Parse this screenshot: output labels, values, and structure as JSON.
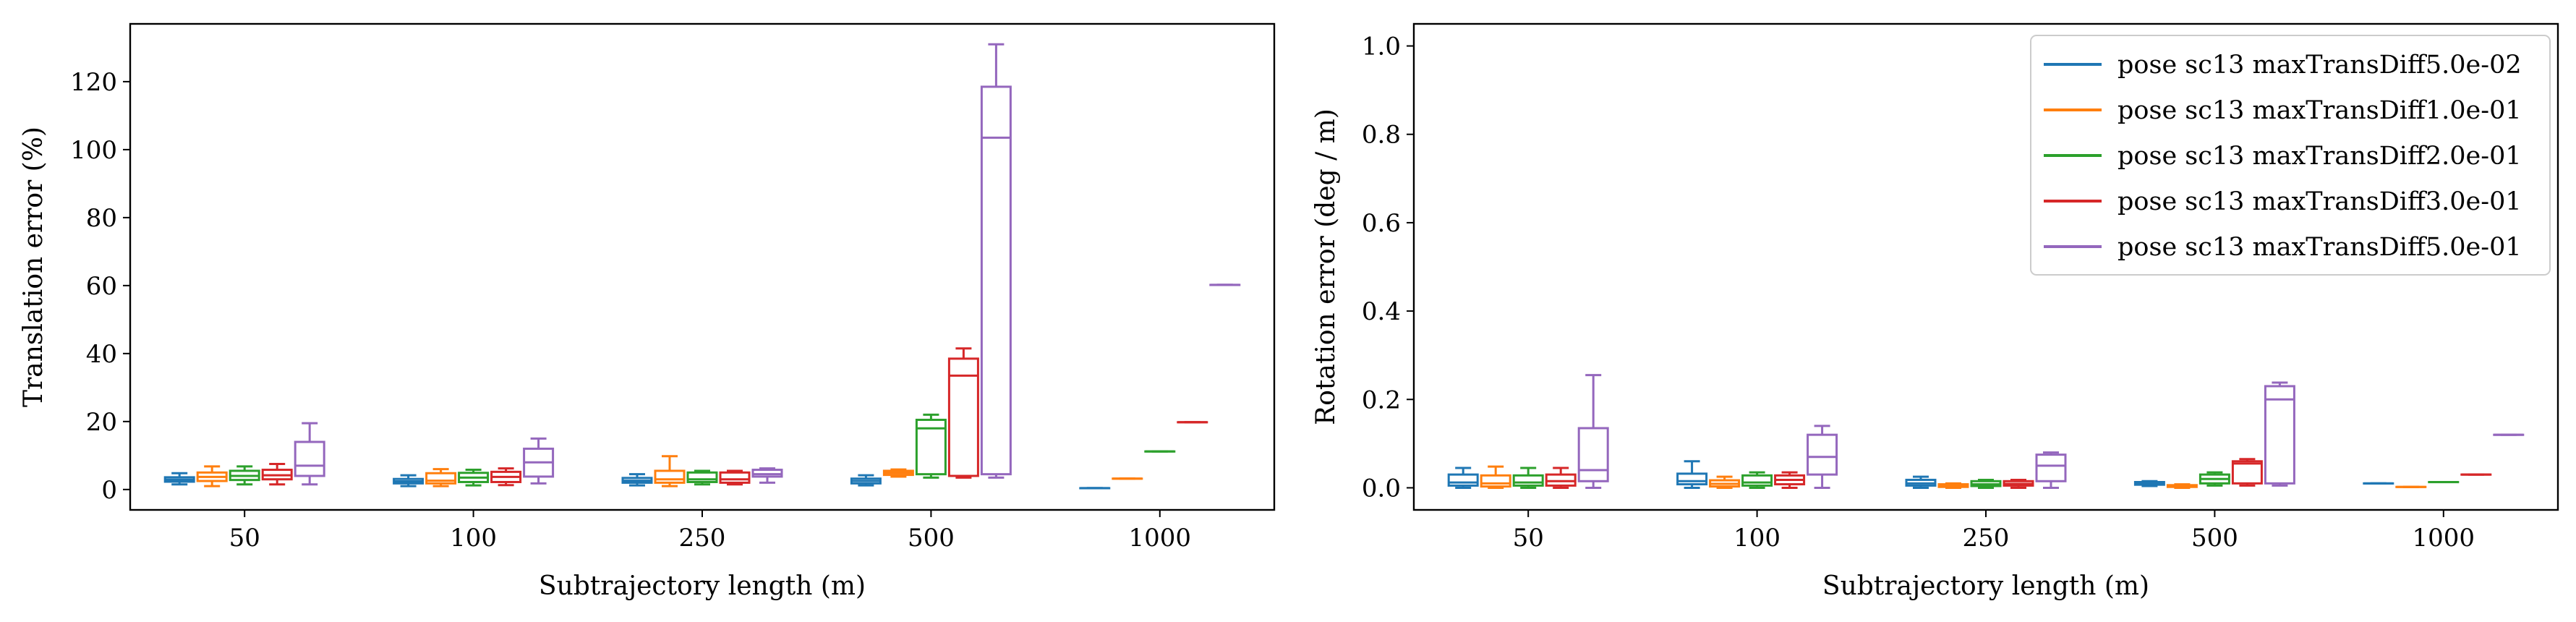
{
  "chart_data": [
    {
      "type": "box",
      "xlabel": "Subtrajectory length (m)",
      "ylabel": "Translation error (%)",
      "categories": [
        "50",
        "100",
        "250",
        "500",
        "1000"
      ],
      "ylim": [
        -6,
        137
      ],
      "yticks": [
        0,
        20,
        40,
        60,
        80,
        100,
        120
      ],
      "grid": false,
      "series": [
        {
          "name": "pose sc13 maxTransDiff5.0e-02",
          "color": "#1f77b4",
          "boxes": [
            {
              "whislo": 1.5,
              "q1": 2.3,
              "med": 2.9,
              "q3": 3.6,
              "whishi": 4.8
            },
            {
              "whislo": 1.0,
              "q1": 1.8,
              "med": 2.4,
              "q3": 3.1,
              "whishi": 4.2
            },
            {
              "whislo": 1.2,
              "q1": 2.0,
              "med": 2.6,
              "q3": 3.4,
              "whishi": 4.5
            },
            {
              "whislo": 1.2,
              "q1": 1.8,
              "med": 2.5,
              "q3": 3.2,
              "whishi": 4.2
            },
            {
              "whislo": 0.4,
              "q1": 0.4,
              "med": 0.4,
              "q3": 0.4,
              "whishi": 0.4
            }
          ]
        },
        {
          "name": "pose sc13 maxTransDiff1.0e-01",
          "color": "#ff7f0e",
          "boxes": [
            {
              "whislo": 1.0,
              "q1": 2.5,
              "med": 3.7,
              "q3": 5.0,
              "whishi": 6.8
            },
            {
              "whislo": 1.0,
              "q1": 1.8,
              "med": 2.6,
              "q3": 4.8,
              "whishi": 6.0
            },
            {
              "whislo": 1.0,
              "q1": 2.0,
              "med": 3.0,
              "q3": 5.5,
              "whishi": 9.8
            },
            {
              "whislo": 3.8,
              "q1": 4.3,
              "med": 4.9,
              "q3": 5.5,
              "whishi": 5.9
            },
            {
              "whislo": 3.2,
              "q1": 3.2,
              "med": 3.2,
              "q3": 3.2,
              "whishi": 3.2
            }
          ]
        },
        {
          "name": "pose sc13 maxTransDiff2.0e-01",
          "color": "#2ca02c",
          "boxes": [
            {
              "whislo": 1.5,
              "q1": 2.8,
              "med": 4.0,
              "q3": 5.5,
              "whishi": 6.8
            },
            {
              "whislo": 1.2,
              "q1": 2.2,
              "med": 3.5,
              "q3": 4.9,
              "whishi": 5.8
            },
            {
              "whislo": 1.5,
              "q1": 2.2,
              "med": 3.0,
              "q3": 5.0,
              "whishi": 5.5
            },
            {
              "whislo": 3.5,
              "q1": 4.5,
              "med": 18.0,
              "q3": 20.5,
              "whishi": 22.0
            },
            {
              "whislo": 11.2,
              "q1": 11.2,
              "med": 11.2,
              "q3": 11.2,
              "whishi": 11.2
            }
          ]
        },
        {
          "name": "pose sc13 maxTransDiff3.0e-01",
          "color": "#d62728",
          "boxes": [
            {
              "whislo": 1.5,
              "q1": 3.0,
              "med": 4.2,
              "q3": 5.8,
              "whishi": 7.5
            },
            {
              "whislo": 1.3,
              "q1": 2.2,
              "med": 3.7,
              "q3": 5.2,
              "whishi": 6.2
            },
            {
              "whislo": 1.5,
              "q1": 2.0,
              "med": 3.0,
              "q3": 5.0,
              "whishi": 5.5
            },
            {
              "whislo": 3.5,
              "q1": 4.0,
              "med": 33.5,
              "q3": 38.5,
              "whishi": 41.5
            },
            {
              "whislo": 19.8,
              "q1": 19.8,
              "med": 19.8,
              "q3": 19.8,
              "whishi": 19.8
            }
          ]
        },
        {
          "name": "pose sc13 maxTransDiff5.0e-01",
          "color": "#9467bd",
          "boxes": [
            {
              "whislo": 1.5,
              "q1": 4.0,
              "med": 7.0,
              "q3": 14.0,
              "whishi": 19.5
            },
            {
              "whislo": 1.8,
              "q1": 3.8,
              "med": 8.0,
              "q3": 12.0,
              "whishi": 15.0
            },
            {
              "whislo": 2.0,
              "q1": 3.8,
              "med": 4.5,
              "q3": 5.8,
              "whishi": 6.2
            },
            {
              "whislo": 3.5,
              "q1": 4.5,
              "med": 103.5,
              "q3": 118.5,
              "whishi": 131.0
            },
            {
              "whislo": 60.2,
              "q1": 60.2,
              "med": 60.2,
              "q3": 60.2,
              "whishi": 60.2
            }
          ]
        }
      ]
    },
    {
      "type": "box",
      "xlabel": "Subtrajectory length (m)",
      "ylabel": "Rotation error (deg / m)",
      "categories": [
        "50",
        "100",
        "250",
        "500",
        "1000"
      ],
      "ylim": [
        -0.05,
        1.05
      ],
      "yticks": [
        0.0,
        0.2,
        0.4,
        0.6,
        0.8,
        1.0
      ],
      "ytick_labels": [
        "0.0",
        "0.2",
        "0.4",
        "0.6",
        "0.8",
        "1.0"
      ],
      "legend_position": "top-right",
      "grid": false,
      "series": [
        {
          "name": "pose sc13 maxTransDiff5.0e-02",
          "color": "#1f77b4",
          "boxes": [
            {
              "whislo": 0.0,
              "q1": 0.005,
              "med": 0.012,
              "q3": 0.03,
              "whishi": 0.045
            },
            {
              "whislo": 0.0,
              "q1": 0.008,
              "med": 0.015,
              "q3": 0.032,
              "whishi": 0.06
            },
            {
              "whislo": 0.0,
              "q1": 0.005,
              "med": 0.01,
              "q3": 0.018,
              "whishi": 0.025
            },
            {
              "whislo": 0.004,
              "q1": 0.007,
              "med": 0.01,
              "q3": 0.013,
              "whishi": 0.015
            },
            {
              "whislo": 0.01,
              "q1": 0.01,
              "med": 0.01,
              "q3": 0.01,
              "whishi": 0.01
            }
          ]
        },
        {
          "name": "pose sc13 maxTransDiff1.0e-01",
          "color": "#ff7f0e",
          "boxes": [
            {
              "whislo": 0.0,
              "q1": 0.003,
              "med": 0.01,
              "q3": 0.028,
              "whishi": 0.048
            },
            {
              "whislo": 0.0,
              "q1": 0.003,
              "med": 0.009,
              "q3": 0.017,
              "whishi": 0.025
            },
            {
              "whislo": 0.0,
              "q1": 0.002,
              "med": 0.005,
              "q3": 0.008,
              "whishi": 0.01
            },
            {
              "whislo": 0.0,
              "q1": 0.002,
              "med": 0.004,
              "q3": 0.006,
              "whishi": 0.008
            },
            {
              "whislo": 0.002,
              "q1": 0.002,
              "med": 0.002,
              "q3": 0.002,
              "whishi": 0.002
            }
          ]
        },
        {
          "name": "pose sc13 maxTransDiff2.0e-01",
          "color": "#2ca02c",
          "boxes": [
            {
              "whislo": 0.0,
              "q1": 0.005,
              "med": 0.012,
              "q3": 0.028,
              "whishi": 0.045
            },
            {
              "whislo": 0.0,
              "q1": 0.005,
              "med": 0.012,
              "q3": 0.028,
              "whishi": 0.035
            },
            {
              "whislo": 0.0,
              "q1": 0.004,
              "med": 0.008,
              "q3": 0.015,
              "whishi": 0.018
            },
            {
              "whislo": 0.005,
              "q1": 0.01,
              "med": 0.02,
              "q3": 0.03,
              "whishi": 0.035
            },
            {
              "whislo": 0.013,
              "q1": 0.013,
              "med": 0.013,
              "q3": 0.013,
              "whishi": 0.013
            }
          ]
        },
        {
          "name": "pose sc13 maxTransDiff3.0e-01",
          "color": "#d62728",
          "boxes": [
            {
              "whislo": 0.0,
              "q1": 0.005,
              "med": 0.015,
              "q3": 0.03,
              "whishi": 0.045
            },
            {
              "whislo": 0.0,
              "q1": 0.008,
              "med": 0.018,
              "q3": 0.028,
              "whishi": 0.035
            },
            {
              "whislo": 0.0,
              "q1": 0.005,
              "med": 0.009,
              "q3": 0.015,
              "whishi": 0.018
            },
            {
              "whislo": 0.005,
              "q1": 0.01,
              "med": 0.055,
              "q3": 0.06,
              "whishi": 0.065
            },
            {
              "whislo": 0.03,
              "q1": 0.03,
              "med": 0.03,
              "q3": 0.03,
              "whishi": 0.03
            }
          ]
        },
        {
          "name": "pose sc13 maxTransDiff5.0e-01",
          "color": "#9467bd",
          "boxes": [
            {
              "whislo": 0.0,
              "q1": 0.015,
              "med": 0.04,
              "q3": 0.135,
              "whishi": 0.255
            },
            {
              "whislo": 0.0,
              "q1": 0.03,
              "med": 0.07,
              "q3": 0.12,
              "whishi": 0.14
            },
            {
              "whislo": 0.0,
              "q1": 0.015,
              "med": 0.05,
              "q3": 0.075,
              "whishi": 0.08
            },
            {
              "whislo": 0.005,
              "q1": 0.01,
              "med": 0.2,
              "q3": 0.23,
              "whishi": 0.238
            },
            {
              "whislo": 0.12,
              "q1": 0.12,
              "med": 0.12,
              "q3": 0.12,
              "whishi": 0.12
            }
          ]
        }
      ]
    }
  ]
}
